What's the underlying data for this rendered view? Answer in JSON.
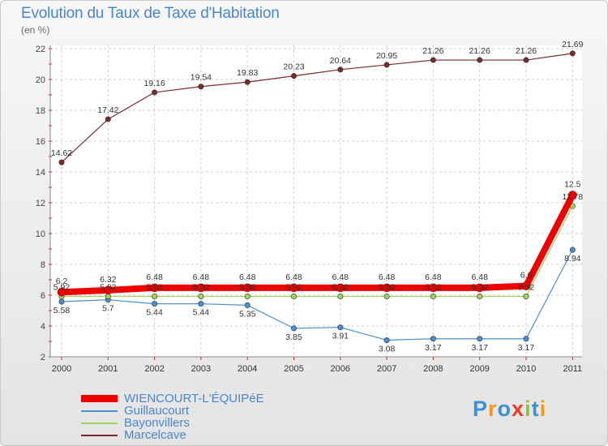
{
  "chart_data": {
    "type": "line",
    "title": "Evolution du Taux de Taxe d'Habitation",
    "subtitle": "(en %)",
    "categories": [
      "2000",
      "2001",
      "2002",
      "2003",
      "2004",
      "2005",
      "2006",
      "2007",
      "2008",
      "2009",
      "2010",
      "2011"
    ],
    "yticks": [
      "2",
      "4",
      "6",
      "8",
      "10",
      "12",
      "14",
      "16",
      "18",
      "20",
      "22"
    ],
    "ylim": [
      2,
      22
    ],
    "grid": true,
    "legend_position": "bottom-left",
    "series": [
      {
        "name": "Marcelcave",
        "color": "#7a2a2a",
        "values": [
          14.62,
          17.42,
          19.16,
          19.54,
          19.83,
          20.23,
          20.64,
          20.95,
          21.26,
          21.26,
          21.26,
          21.69
        ],
        "labels": [
          "14.62",
          "17.42",
          "19.16",
          "19.54",
          "19.83",
          "20.23",
          "20.64",
          "20.95",
          "21.26",
          "21.26",
          "21.26",
          "21.69"
        ]
      },
      {
        "name": "Guillaucourt",
        "color": "#4a8fd0",
        "values": [
          5.58,
          5.7,
          5.44,
          5.44,
          5.35,
          3.85,
          3.91,
          3.08,
          3.17,
          3.17,
          3.17,
          8.94
        ],
        "labels": [
          "5.58",
          "5.7",
          "5.44",
          "5.44",
          "5.35",
          "3.85",
          "3.91",
          "3.08",
          "3.17",
          "3.17",
          "3.17",
          "8.94"
        ]
      },
      {
        "name": "Bayonvillers",
        "color": "#9fd45a",
        "values": [
          5.92,
          5.92,
          5.92,
          5.92,
          5.92,
          5.92,
          5.92,
          5.92,
          5.92,
          5.92,
          5.92,
          11.78
        ],
        "labels": [
          "5.92",
          "5.92",
          "5.92",
          "5.92",
          "5.92",
          "5.92",
          "5.92",
          "5.92",
          "5.92",
          "5.92",
          "5.92",
          "11.78"
        ]
      },
      {
        "name": "WIENCOURT-L'ÉQUIPéE",
        "color": "#ee0000",
        "values": [
          6.2,
          6.32,
          6.48,
          6.48,
          6.48,
          6.48,
          6.48,
          6.48,
          6.48,
          6.48,
          6.6,
          12.5
        ],
        "labels": [
          "6.2",
          "6.32",
          "6.48",
          "6.48",
          "6.48",
          "6.48",
          "6.48",
          "6.48",
          "6.48",
          "6.48",
          "6.6",
          "12.5"
        ]
      }
    ],
    "legend": [
      {
        "name": "WIENCOURT-L'ÉQUIPéE",
        "color": "#ee0000",
        "thick": true
      },
      {
        "name": "Guillaucourt",
        "color": "#4a8fd0",
        "thick": false
      },
      {
        "name": "Bayonvillers",
        "color": "#9fd45a",
        "thick": false
      },
      {
        "name": "Marcelcave",
        "color": "#7a2a2a",
        "thick": false
      }
    ]
  },
  "branding": {
    "logo_text": "Proxiti",
    "logo_colors": [
      "#3d8fd6",
      "#f39a1d",
      "#3d8fd6",
      "#ee3b24",
      "#8ac43f",
      "#3d8fd6",
      "#f39a1d"
    ]
  }
}
